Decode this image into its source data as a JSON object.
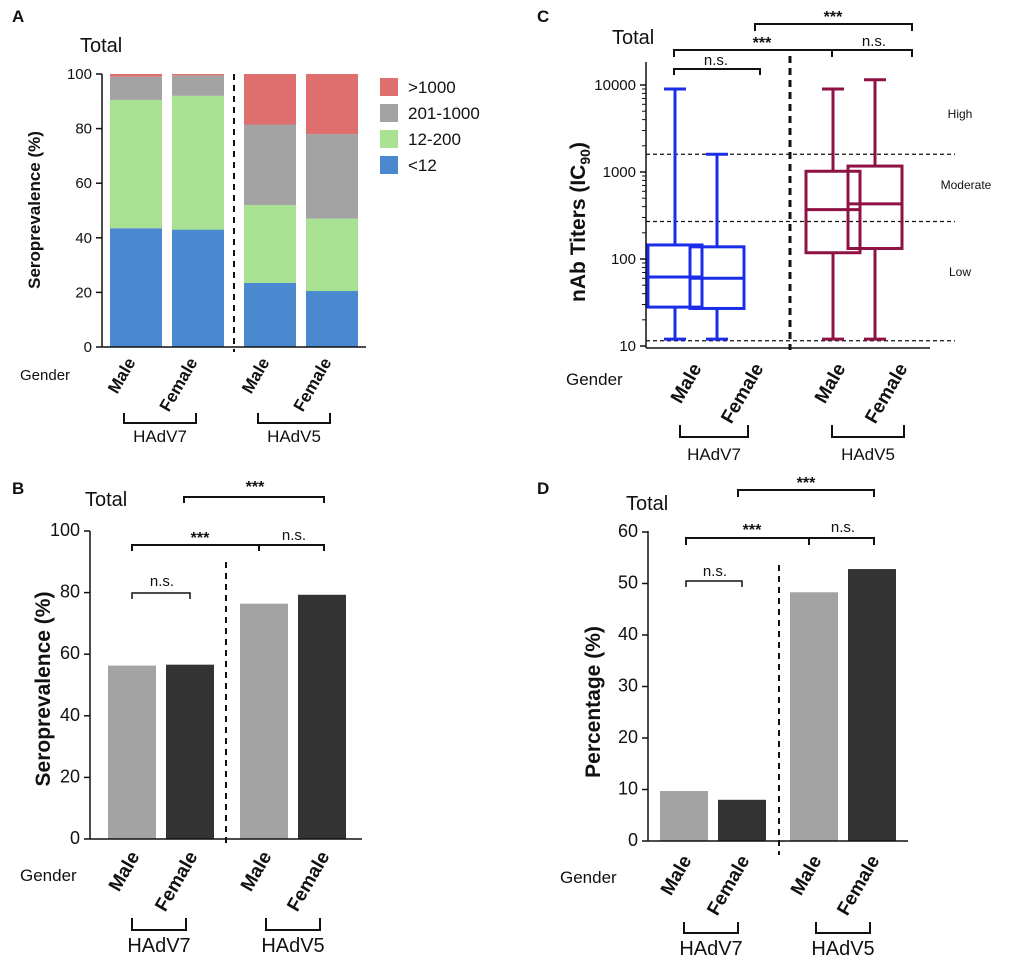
{
  "chart_data": [
    {
      "panel": "A",
      "type": "bar",
      "stacked": true,
      "title": "Total",
      "ylabel": "Seroprevalence (%)",
      "xlabel": "Gender",
      "ylim": [
        0,
        100
      ],
      "yticks": [
        "0",
        "20",
        "40",
        "60",
        "80",
        "100"
      ],
      "categories": [
        "Male",
        "Female",
        "Male",
        "Female"
      ],
      "groups": [
        {
          "label": "HAdV7"
        },
        {
          "label": "HAdV5"
        }
      ],
      "series": [
        {
          "name": "<12",
          "color": "#4a88cf",
          "values": [
            43.5,
            43,
            23.5,
            20.5
          ]
        },
        {
          "name": "12-200",
          "color": "#a9e192",
          "values": [
            47,
            49,
            28.5,
            26.5
          ]
        },
        {
          "name": "201-1000",
          "color": "#a3a3a3",
          "values": [
            8.5,
            7.5,
            29.5,
            31
          ]
        },
        {
          "name": ">1000",
          "color": "#df6f6e",
          "values": [
            1,
            0.5,
            18.5,
            22
          ]
        }
      ],
      "legend": [
        ">1000",
        "201-1000",
        "12-200",
        "<12"
      ]
    },
    {
      "panel": "B",
      "type": "bar",
      "title": "Total",
      "ylabel": "Seroprevalence (%)",
      "xlabel": "Gender",
      "ylim": [
        0,
        100
      ],
      "yticks": [
        "0",
        "20",
        "40",
        "60",
        "80",
        "100"
      ],
      "categories": [
        "Male",
        "Female",
        "Male",
        "Female"
      ],
      "groups": [
        {
          "label": "HAdV7"
        },
        {
          "label": "HAdV5"
        }
      ],
      "values": [
        56.3,
        56.6,
        76.4,
        79.3
      ],
      "colors": [
        "#a3a3a3",
        "#333333",
        "#a3a3a3",
        "#333333"
      ],
      "significance": [
        "***",
        "***",
        "n.s.",
        "n.s."
      ]
    },
    {
      "panel": "C",
      "type": "box",
      "title": "Total",
      "ylabel_main": "nAb Titers (IC",
      "ylabel_sub": "90",
      "ylabel_end": ")",
      "xlabel": "Gender",
      "yscale": "log",
      "ylim": [
        10,
        10000
      ],
      "yticks": [
        "10",
        "100",
        "1000",
        "10000"
      ],
      "categories": [
        "Male",
        "Female",
        "Male",
        "Female"
      ],
      "groups": [
        {
          "label": "HAdV7"
        },
        {
          "label": "HAdV5"
        }
      ],
      "boxes": [
        {
          "min": 12,
          "q1": 28,
          "median": 62,
          "q3": 145,
          "max": 9000,
          "color": "#1a2de8"
        },
        {
          "min": 12,
          "q1": 27,
          "median": 60,
          "q3": 138,
          "max": 1600,
          "color": "#1a2de8"
        },
        {
          "min": 12,
          "q1": 118,
          "median": 370,
          "q3": 1020,
          "max": 9000,
          "color": "#8e1244"
        },
        {
          "min": 12,
          "q1": 132,
          "median": 430,
          "q3": 1170,
          "max": 11500,
          "color": "#8e1244"
        }
      ],
      "thresholds": [
        1600,
        270,
        11.5
      ],
      "zones": [
        "High",
        "Moderate",
        "Low"
      ],
      "significance": [
        "***",
        "***",
        "n.s.",
        "n.s."
      ]
    },
    {
      "panel": "D",
      "type": "bar",
      "title": "Total",
      "ylabel": "Percentage (%)",
      "xlabel": "Gender",
      "ylim": [
        0,
        60
      ],
      "yticks": [
        "0",
        "10",
        "20",
        "30",
        "40",
        "50",
        "60"
      ],
      "categories": [
        "Male",
        "Female",
        "Male",
        "Female"
      ],
      "groups": [
        {
          "label": "HAdV7"
        },
        {
          "label": "HAdV5"
        }
      ],
      "values": [
        9.7,
        8.0,
        48.3,
        52.8
      ],
      "colors": [
        "#a3a3a3",
        "#333333",
        "#a3a3a3",
        "#333333"
      ],
      "significance": [
        "***",
        "***",
        "n.s.",
        "n.s."
      ]
    }
  ]
}
